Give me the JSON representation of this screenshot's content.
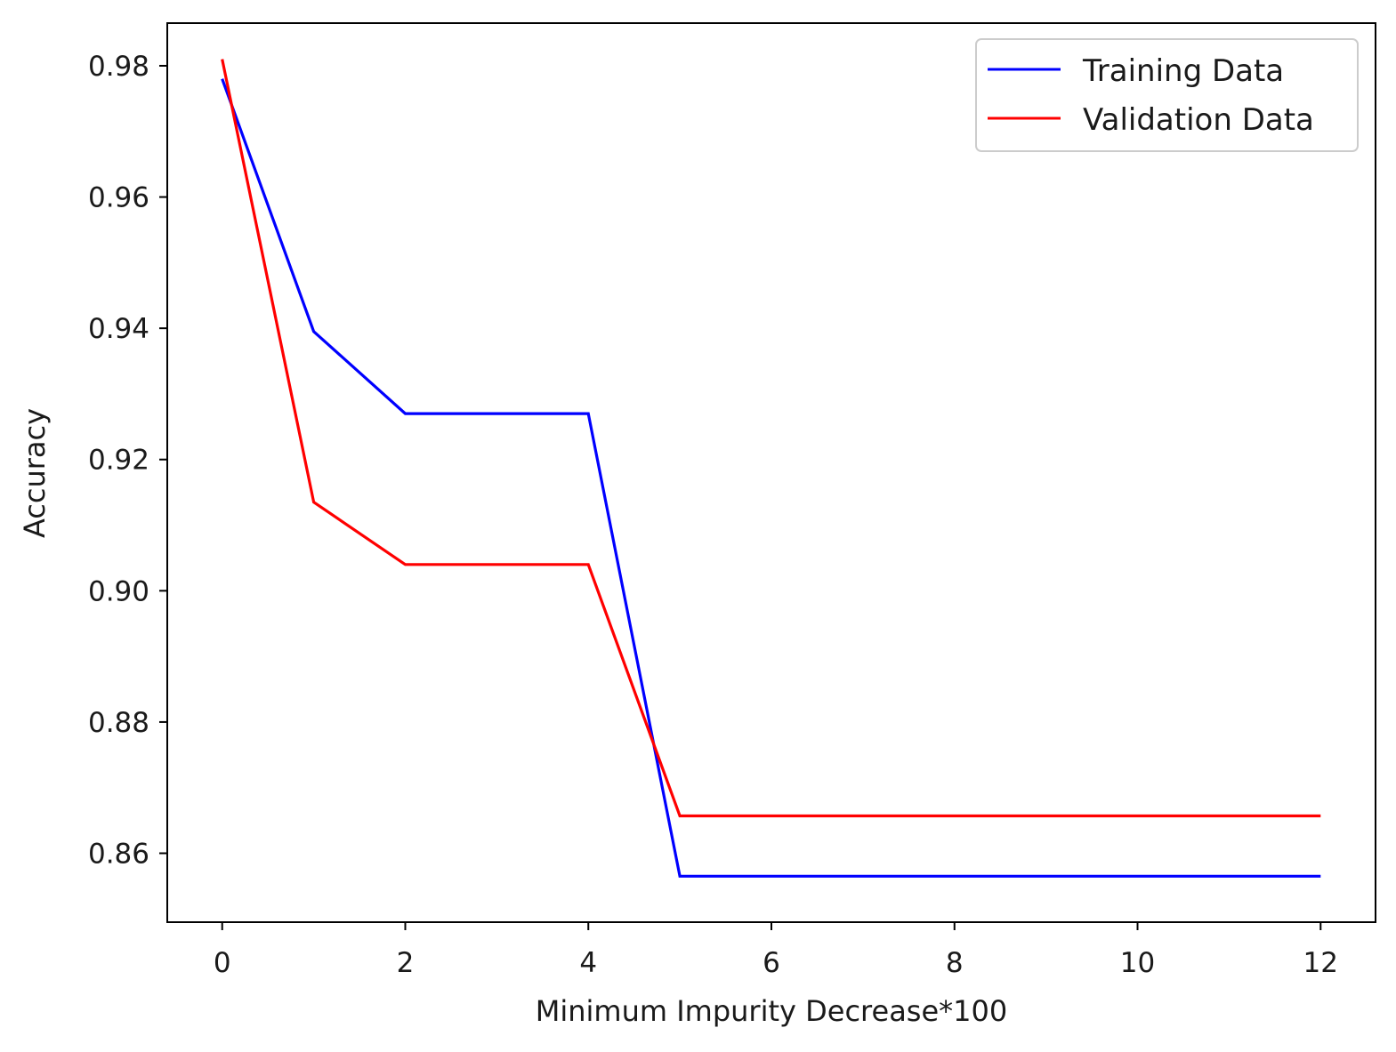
{
  "chart_data": {
    "type": "line",
    "title": "",
    "xlabel": "Minimum Impurity Decrease*100",
    "ylabel": "Accuracy",
    "xlim": [
      -0.6,
      12.6
    ],
    "ylim": [
      0.8495,
      0.9865
    ],
    "xticks": [
      0,
      2,
      4,
      6,
      8,
      10,
      12
    ],
    "xtick_labels": [
      "0",
      "2",
      "4",
      "6",
      "8",
      "10",
      "12"
    ],
    "yticks": [
      0.86,
      0.88,
      0.9,
      0.92,
      0.94,
      0.96,
      0.98
    ],
    "ytick_labels": [
      "0.86",
      "0.88",
      "0.90",
      "0.92",
      "0.94",
      "0.96",
      "0.98"
    ],
    "grid": false,
    "legend_position": "top-right",
    "series": [
      {
        "name": "Training Data",
        "color": "#0000ff",
        "x": [
          0,
          1,
          2,
          3,
          4,
          5,
          6,
          7,
          8,
          9,
          10,
          11,
          12
        ],
        "values": [
          0.978,
          0.9395,
          0.927,
          0.927,
          0.927,
          0.8565,
          0.8565,
          0.8565,
          0.8565,
          0.8565,
          0.8565,
          0.8565,
          0.8565
        ]
      },
      {
        "name": "Validation Data",
        "color": "#ff0000",
        "x": [
          0,
          1,
          2,
          3,
          4,
          5,
          6,
          7,
          8,
          9,
          10,
          11,
          12
        ],
        "values": [
          0.981,
          0.9135,
          0.904,
          0.904,
          0.904,
          0.8657,
          0.8657,
          0.8657,
          0.8657,
          0.8657,
          0.8657,
          0.8657,
          0.8657
        ]
      }
    ]
  }
}
